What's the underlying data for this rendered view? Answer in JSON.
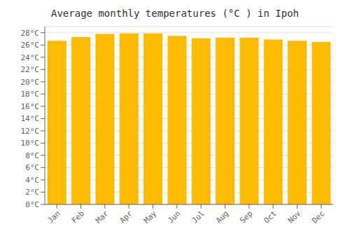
{
  "chart_data": {
    "type": "bar",
    "title": "Average monthly temperatures (°C ) in Ipoh",
    "categories": [
      "Jan",
      "Feb",
      "Mar",
      "Apr",
      "May",
      "Jun",
      "Jul",
      "Aug",
      "Sep",
      "Oct",
      "Nov",
      "Dec"
    ],
    "values": [
      26.7,
      27.3,
      27.8,
      27.9,
      27.9,
      27.5,
      27.1,
      27.2,
      27.2,
      26.9,
      26.7,
      26.5
    ],
    "color": "#FFBB00",
    "ylim": [
      0,
      29
    ],
    "yticks": [
      {
        "value": 0,
        "label": "0°C"
      },
      {
        "value": 2,
        "label": "2°C"
      },
      {
        "value": 4,
        "label": "4°C"
      },
      {
        "value": 6,
        "label": "6°C"
      },
      {
        "value": 8,
        "label": "8°C"
      },
      {
        "value": 10,
        "label": "10°C"
      },
      {
        "value": 12,
        "label": "12°C"
      },
      {
        "value": 14,
        "label": "14°C"
      },
      {
        "value": 16,
        "label": "16°C"
      },
      {
        "value": 18,
        "label": "18°C"
      },
      {
        "value": 20,
        "label": "20°C"
      },
      {
        "value": 22,
        "label": "22°C"
      },
      {
        "value": 24,
        "label": "24°C"
      },
      {
        "value": 26,
        "label": "26°C"
      },
      {
        "value": 28,
        "label": "28°C"
      }
    ],
    "grid": true
  }
}
